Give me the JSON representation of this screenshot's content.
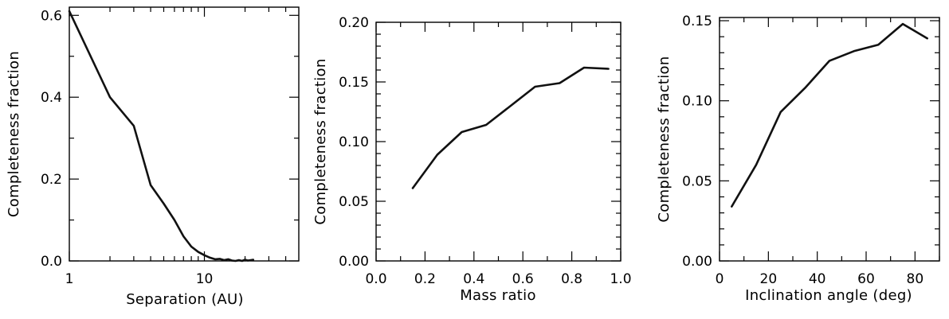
{
  "chart_data": [
    {
      "type": "line",
      "xlabel": "Separation (AU)",
      "ylabel": "Completeness fraction",
      "xscale": "log",
      "xlim": [
        1,
        50
      ],
      "ylim": [
        0.0,
        0.62
      ],
      "xticks": [
        1,
        10
      ],
      "xtick_labels": [
        "1",
        "10"
      ],
      "yticks": [
        0.0,
        0.2,
        0.4,
        0.6
      ],
      "ytick_labels": [
        "0.0",
        "0.2",
        "0.4",
        "0.6"
      ],
      "grid": false,
      "x": [
        1,
        2,
        3,
        4,
        5,
        6,
        7,
        8,
        9,
        10,
        11,
        12,
        13,
        14,
        15,
        16,
        17,
        18,
        19,
        20,
        21,
        22,
        23
      ],
      "y": [
        0.61,
        0.4,
        0.33,
        0.185,
        0.14,
        0.1,
        0.06,
        0.035,
        0.022,
        0.014,
        0.008,
        0.004,
        0.005,
        0.002,
        0.004,
        0.001,
        0.0,
        0.002,
        0.0,
        0.003,
        0.001,
        0.002,
        0.003
      ]
    },
    {
      "type": "line",
      "xlabel": "Mass ratio",
      "ylabel": "Completeness fraction",
      "xlim": [
        0.0,
        1.0
      ],
      "ylim": [
        0.0,
        0.2
      ],
      "xticks": [
        0.0,
        0.2,
        0.4,
        0.6,
        0.8,
        1.0
      ],
      "xtick_labels": [
        "0.0",
        "0.2",
        "0.4",
        "0.6",
        "0.8",
        "1.0"
      ],
      "yticks": [
        0.0,
        0.05,
        0.1,
        0.15,
        0.2
      ],
      "ytick_labels": [
        "0.00",
        "0.05",
        "0.10",
        "0.15",
        "0.20"
      ],
      "grid": false,
      "x": [
        0.15,
        0.25,
        0.35,
        0.45,
        0.55,
        0.65,
        0.75,
        0.85,
        0.95
      ],
      "y": [
        0.061,
        0.089,
        0.108,
        0.114,
        0.13,
        0.146,
        0.149,
        0.162,
        0.161
      ]
    },
    {
      "type": "line",
      "xlabel": "Inclination angle (deg)",
      "ylabel": "Completeness fraction",
      "xlim": [
        0,
        90
      ],
      "ylim": [
        0.0,
        0.152
      ],
      "xticks": [
        0,
        20,
        40,
        60,
        80
      ],
      "xtick_labels": [
        "0",
        "20",
        "40",
        "60",
        "80"
      ],
      "yticks": [
        0.0,
        0.05,
        0.1,
        0.15
      ],
      "ytick_labels": [
        "0.00",
        "0.05",
        "0.10",
        "0.15"
      ],
      "grid": false,
      "x": [
        5,
        15,
        25,
        35,
        45,
        55,
        65,
        75,
        85
      ],
      "y": [
        0.034,
        0.06,
        0.093,
        0.108,
        0.125,
        0.131,
        0.135,
        0.148,
        0.139
      ]
    }
  ]
}
